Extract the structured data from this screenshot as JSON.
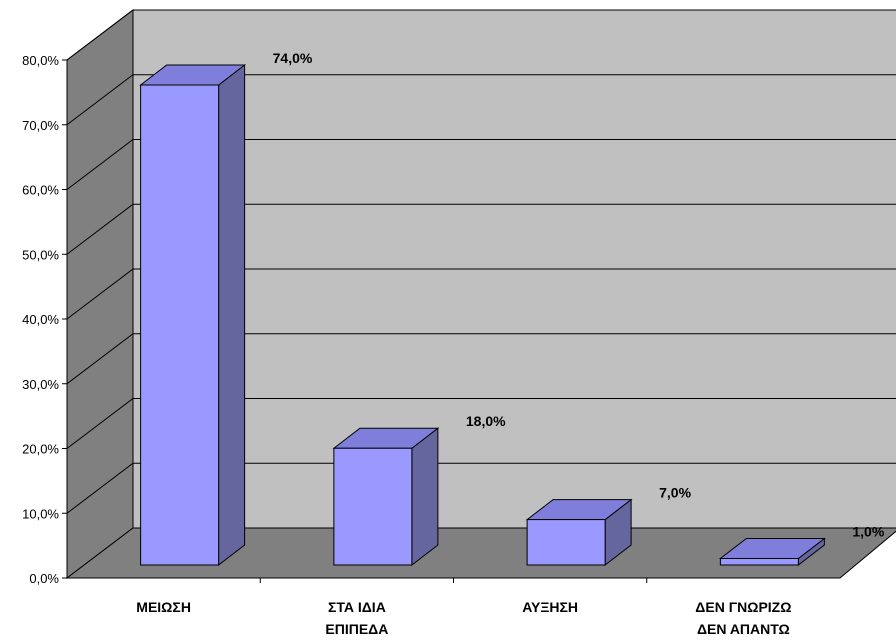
{
  "chart_data": {
    "type": "bar",
    "title": "",
    "xlabel": "",
    "ylabel": "",
    "categories": [
      [
        "ΜΕΙΩΣΗ"
      ],
      [
        "ΣΤΑ ΙΔΙΑ",
        "ΕΠΙΠΕΔΑ"
      ],
      [
        "ΑΥΞΗΣΗ"
      ],
      [
        "ΔΕΝ ΓΝΩΡΙΖΩ",
        "ΔΕΝ ΑΠΑΝΤΩ"
      ]
    ],
    "values": [
      74.0,
      18.0,
      7.0,
      1.0
    ],
    "value_labels": [
      "74,0%",
      "18,0%",
      "7,0%",
      "1,0%"
    ],
    "ylim": [
      0,
      80
    ],
    "y_ticks": [
      "0,0%",
      "10,0%",
      "20,0%",
      "30,0%",
      "40,0%",
      "50,0%",
      "60,0%",
      "70,0%",
      "80,0%"
    ],
    "grid": true,
    "legend": "none",
    "style": "3d",
    "colors": {
      "back_wall": "#c0c0c0",
      "side_wall": "#808080",
      "floor": "#808080",
      "bar_front": "#9999ff",
      "bar_top": "#7f7fdb",
      "bar_side": "#66669f",
      "grid": "#000000"
    }
  }
}
